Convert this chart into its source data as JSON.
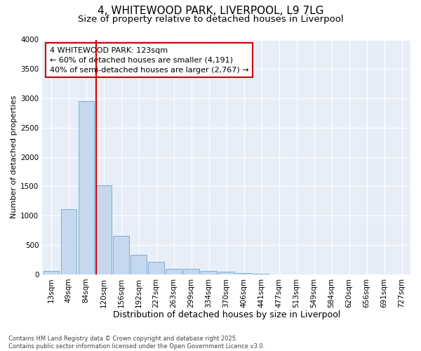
{
  "title_line1": "4, WHITEWOOD PARK, LIVERPOOL, L9 7LG",
  "title_line2": "Size of property relative to detached houses in Liverpool",
  "xlabel": "Distribution of detached houses by size in Liverpool",
  "ylabel": "Number of detached properties",
  "categories": [
    "13sqm",
    "49sqm",
    "84sqm",
    "120sqm",
    "156sqm",
    "192sqm",
    "227sqm",
    "263sqm",
    "299sqm",
    "334sqm",
    "370sqm",
    "406sqm",
    "441sqm",
    "477sqm",
    "513sqm",
    "549sqm",
    "584sqm",
    "620sqm",
    "656sqm",
    "691sqm",
    "727sqm"
  ],
  "values": [
    55,
    1110,
    2950,
    1520,
    660,
    335,
    210,
    95,
    95,
    60,
    50,
    20,
    5,
    0,
    0,
    0,
    0,
    0,
    0,
    0,
    0
  ],
  "bar_color": "#c5d8f0",
  "bar_edge_color": "#7bafd4",
  "vline_color": "#cc0000",
  "vline_x": 2.575,
  "annotation_text": "4 WHITEWOOD PARK: 123sqm\n← 60% of detached houses are smaller (4,191)\n40% of semi-detached houses are larger (2,767) →",
  "annotation_box_edgecolor": "#cc0000",
  "ylim": [
    0,
    4000
  ],
  "yticks": [
    0,
    500,
    1000,
    1500,
    2000,
    2500,
    3000,
    3500,
    4000
  ],
  "background_color": "#e8eef8",
  "footer_text": "Contains HM Land Registry data © Crown copyright and database right 2025.\nContains public sector information licensed under the Open Government Licence v3.0.",
  "title_fontsize": 11,
  "subtitle_fontsize": 9.5,
  "xlabel_fontsize": 9,
  "ylabel_fontsize": 8,
  "tick_fontsize": 7.5,
  "annotation_fontsize": 8,
  "footer_fontsize": 6
}
